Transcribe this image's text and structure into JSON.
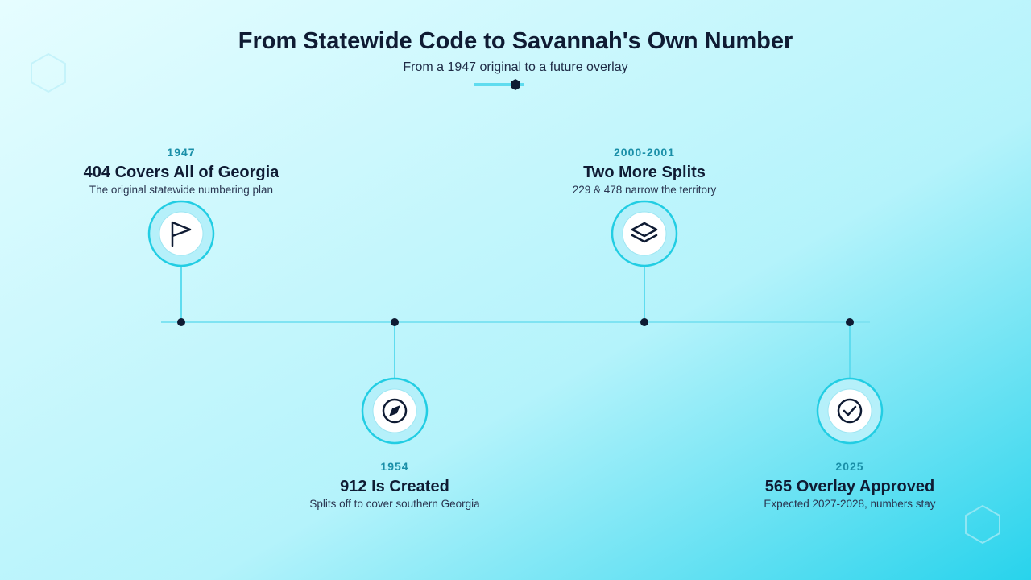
{
  "header": {
    "title": "From Statewide Code to Savannah's Own Number",
    "subtitle": "From a 1947 original to a future overlay"
  },
  "events": [
    {
      "year": "1947",
      "title": "404 Covers All of Georgia",
      "description": "The original statewide numbering plan"
    },
    {
      "year": "1954",
      "title": "912 Is Created",
      "description": "Splits off to cover southern Georgia"
    },
    {
      "year": "2000-2001",
      "title": "Two More Splits",
      "description": "229 & 478 narrow the territory"
    },
    {
      "year": "2025",
      "title": "565 Overlay Approved",
      "description": "Expected 2027-2028, numbers stay"
    }
  ]
}
